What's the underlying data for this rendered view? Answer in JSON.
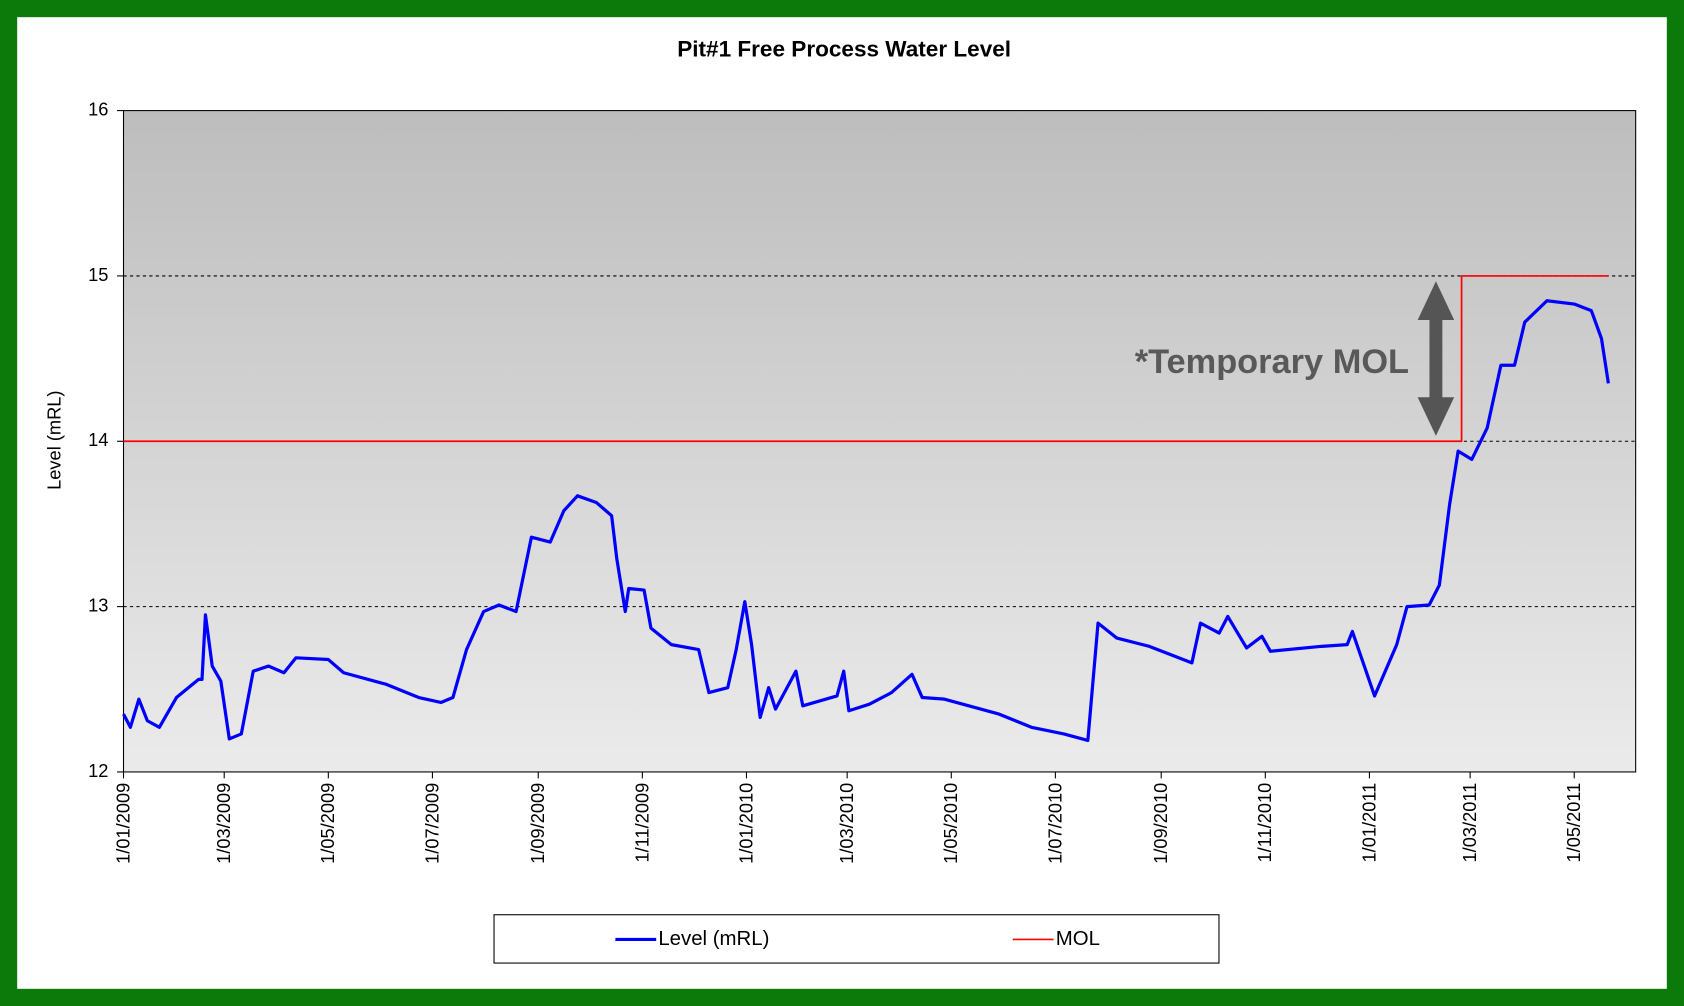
{
  "chart_data": {
    "type": "line",
    "title": "Pit#1 Free Process Water Level",
    "y_label": "Level (mRL)",
    "annotation": "*Temporary MOL",
    "xlim": [
      "2009-01-01",
      "2011-06-06"
    ],
    "xticks": [
      {
        "value": "2009-01-01",
        "label": "1/01/2009"
      },
      {
        "value": "2009-03-01",
        "label": "1/03/2009"
      },
      {
        "value": "2009-05-01",
        "label": "1/05/2009"
      },
      {
        "value": "2009-07-01",
        "label": "1/07/2009"
      },
      {
        "value": "2009-09-01",
        "label": "1/09/2009"
      },
      {
        "value": "2009-11-01",
        "label": "1/11/2009"
      },
      {
        "value": "2010-01-01",
        "label": "1/01/2010"
      },
      {
        "value": "2010-03-01",
        "label": "1/03/2010"
      },
      {
        "value": "2010-05-01",
        "label": "1/05/2010"
      },
      {
        "value": "2010-07-01",
        "label": "1/07/2010"
      },
      {
        "value": "2010-09-01",
        "label": "1/09/2010"
      },
      {
        "value": "2010-11-01",
        "label": "1/11/2010"
      },
      {
        "value": "2011-01-01",
        "label": "1/01/2011"
      },
      {
        "value": "2011-03-01",
        "label": "1/03/2011"
      },
      {
        "value": "2011-05-01",
        "label": "1/05/2011"
      }
    ],
    "ylim": [
      12,
      16
    ],
    "yticks": [
      12,
      13,
      14,
      15,
      16
    ],
    "grid": true,
    "series": [
      {
        "name": "Level (mRL)",
        "color": "#0000ff",
        "x": [
          "2009-01-01",
          "2009-01-05",
          "2009-01-10",
          "2009-01-15",
          "2009-01-22",
          "2009-02-01",
          "2009-02-14",
          "2009-02-16",
          "2009-02-18",
          "2009-02-22",
          "2009-02-27",
          "2009-03-04",
          "2009-03-11",
          "2009-03-18",
          "2009-03-27",
          "2009-04-05",
          "2009-04-12",
          "2009-05-01",
          "2009-05-10",
          "2009-06-04",
          "2009-06-23",
          "2009-07-06",
          "2009-07-13",
          "2009-07-21",
          "2009-07-31",
          "2009-08-09",
          "2009-08-19",
          "2009-08-28",
          "2009-09-08",
          "2009-09-16",
          "2009-09-24",
          "2009-10-05",
          "2009-10-14",
          "2009-10-17",
          "2009-10-22",
          "2009-10-24",
          "2009-11-02",
          "2009-11-06",
          "2009-11-18",
          "2009-12-04",
          "2009-12-10",
          "2009-12-21",
          "2009-12-26",
          "2009-12-31",
          "2010-01-04",
          "2010-01-09",
          "2010-01-14",
          "2010-01-18",
          "2010-01-30",
          "2010-02-03",
          "2010-02-23",
          "2010-02-27",
          "2010-03-02",
          "2010-03-14",
          "2010-03-27",
          "2010-04-08",
          "2010-04-14",
          "2010-04-27",
          "2010-05-29",
          "2010-06-17",
          "2010-07-06",
          "2010-07-20",
          "2010-07-26",
          "2010-08-06",
          "2010-08-25",
          "2010-09-19",
          "2010-09-24",
          "2010-10-05",
          "2010-10-10",
          "2010-10-21",
          "2010-10-30",
          "2010-11-04",
          "2010-12-04",
          "2010-12-19",
          "2010-12-22",
          "2011-01-04",
          "2011-01-17",
          "2011-01-23",
          "2011-02-05",
          "2011-02-11",
          "2011-02-17",
          "2011-02-22",
          "2011-03-02",
          "2011-03-11",
          "2011-03-19",
          "2011-03-27",
          "2011-04-02",
          "2011-04-15",
          "2011-05-01",
          "2011-05-11",
          "2011-05-17",
          "2011-05-21"
        ],
        "values": [
          12.35,
          12.27,
          12.44,
          12.31,
          12.27,
          12.45,
          12.56,
          12.56,
          12.95,
          12.64,
          12.55,
          12.2,
          12.23,
          12.61,
          12.64,
          12.6,
          12.69,
          12.68,
          12.6,
          12.53,
          12.45,
          12.42,
          12.45,
          12.74,
          12.97,
          13.01,
          12.97,
          13.42,
          13.39,
          13.58,
          13.67,
          13.63,
          13.55,
          13.29,
          12.97,
          13.11,
          13.1,
          12.87,
          12.77,
          12.74,
          12.48,
          12.51,
          12.74,
          13.03,
          12.77,
          12.33,
          12.51,
          12.38,
          12.61,
          12.4,
          12.46,
          12.61,
          12.37,
          12.41,
          12.48,
          12.59,
          12.45,
          12.44,
          12.35,
          12.27,
          12.23,
          12.19,
          12.9,
          12.81,
          12.76,
          12.66,
          12.9,
          12.84,
          12.94,
          12.75,
          12.82,
          12.73,
          12.76,
          12.77,
          12.85,
          12.46,
          12.77,
          13.0,
          13.01,
          13.13,
          13.62,
          13.94,
          13.89,
          14.08,
          14.46,
          14.46,
          14.72,
          14.85,
          14.83,
          14.79,
          14.62,
          14.35
        ]
      },
      {
        "name": "MOL",
        "color": "#ff0000",
        "x": [
          "2009-01-01",
          "2011-02-24",
          "2011-02-24",
          "2011-05-21"
        ],
        "values": [
          14,
          14,
          15,
          15
        ]
      }
    ]
  }
}
